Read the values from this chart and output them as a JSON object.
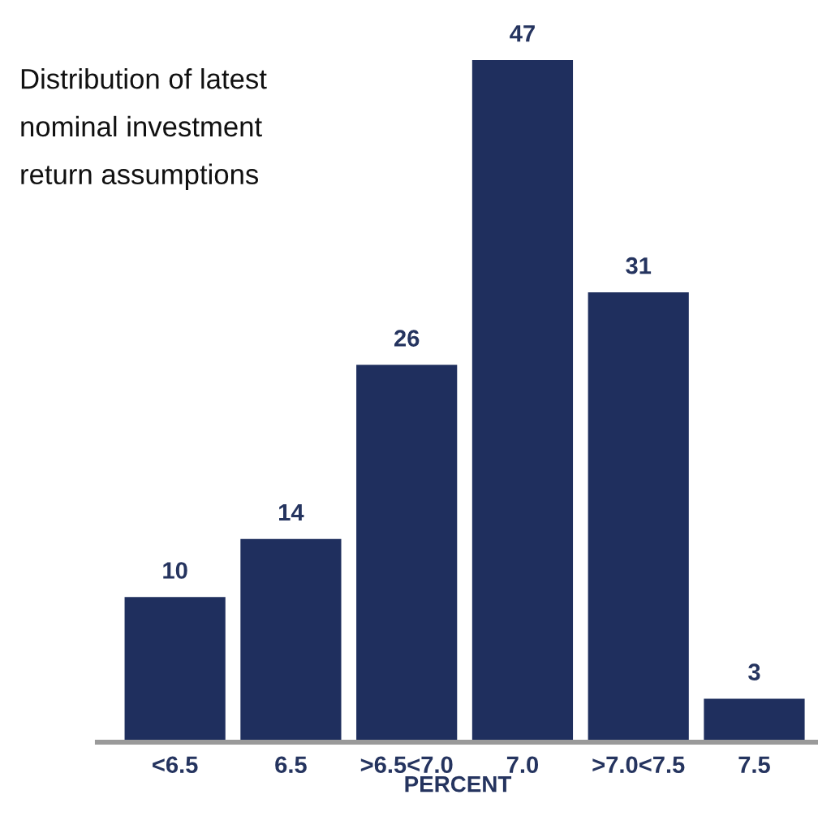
{
  "chart_data": {
    "type": "bar",
    "title": "Distribution of latest\nnominal investment\nreturn assumptions",
    "xlabel": "PERCENT",
    "categories": [
      "<6.5",
      "6.5",
      ">6.5<7.0",
      "7.0",
      ">7.0<7.5",
      "7.5"
    ],
    "values": [
      10,
      14,
      26,
      47,
      31,
      3
    ],
    "color": "#1f2f5e",
    "data_labels": true,
    "tick_labels": "x"
  }
}
